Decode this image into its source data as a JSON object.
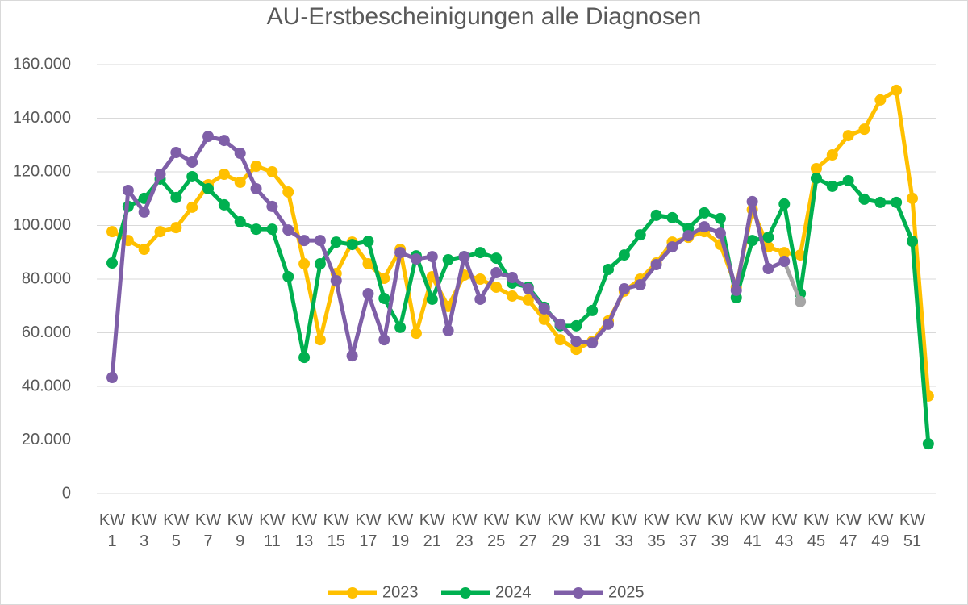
{
  "chart_data": {
    "type": "line",
    "title": "AU-Erstbescheinigungen alle Diagnosen",
    "categories": [
      "KW 1",
      null,
      "KW 3",
      null,
      "KW 5",
      null,
      "KW 7",
      null,
      "KW 9",
      null,
      "KW 11",
      null,
      "KW 13",
      null,
      "KW 15",
      null,
      "KW 17",
      null,
      "KW 19",
      null,
      "KW 21",
      null,
      "KW 23",
      null,
      "KW 25",
      null,
      "KW 27",
      null,
      "KW 29",
      null,
      "KW 31",
      null,
      "KW 33",
      null,
      "KW 35",
      null,
      "KW 37",
      null,
      "KW 39",
      null,
      "KW 41",
      null,
      "KW 43",
      null,
      "KW 45",
      null,
      "KW 47",
      null,
      "KW 49",
      null,
      "KW 51",
      null
    ],
    "ylim": [
      0,
      160000
    ],
    "yticks": [
      {
        "value": 0,
        "label": "0"
      },
      {
        "value": 20000,
        "label": "20.000"
      },
      {
        "value": 40000,
        "label": "40.000"
      },
      {
        "value": 60000,
        "label": "60.000"
      },
      {
        "value": 80000,
        "label": "80.000"
      },
      {
        "value": 100000,
        "label": "100.000"
      },
      {
        "value": 120000,
        "label": "120.000"
      },
      {
        "value": 140000,
        "label": "140.000"
      },
      {
        "value": 160000,
        "label": "160.000"
      }
    ],
    "grid": true,
    "legend": "bottom",
    "series": [
      {
        "name": "2023",
        "color": "#ffc000",
        "values": [
          97700,
          94400,
          91100,
          97700,
          99200,
          106800,
          115200,
          119100,
          116100,
          122100,
          120000,
          112500,
          85700,
          57400,
          82100,
          93800,
          85700,
          80300,
          91100,
          59800,
          80900,
          69800,
          81500,
          80000,
          77000,
          73700,
          72200,
          65000,
          57400,
          53800,
          56800,
          64400,
          75500,
          80000,
          86000,
          93800,
          95600,
          97700,
          92900,
          77000,
          105900,
          92000,
          89900,
          89000,
          121200,
          126300,
          133500,
          135900,
          146800,
          150400,
          110100,
          36400
        ]
      },
      {
        "name": "2024",
        "color": "#00b050",
        "values": [
          86000,
          107100,
          110100,
          117300,
          110400,
          118200,
          113700,
          107700,
          101400,
          98600,
          98600,
          80900,
          50800,
          85700,
          93800,
          92900,
          94100,
          72800,
          62000,
          88700,
          72500,
          87200,
          88400,
          89900,
          87800,
          78500,
          77000,
          69500,
          62600,
          62600,
          68300,
          83600,
          89000,
          96500,
          103800,
          102900,
          98900,
          104700,
          102600,
          73100,
          94400,
          95600,
          108000,
          74600,
          117600,
          114600,
          116700,
          109800,
          108600,
          108600,
          94100,
          18600
        ]
      },
      {
        "name": "2025",
        "color": "#7f5fa8",
        "tail_color": "#a5a5a5",
        "values": [
          43300,
          113100,
          105000,
          119100,
          127200,
          123600,
          133200,
          131700,
          126900,
          113700,
          107100,
          98300,
          94400,
          94400,
          79400,
          51400,
          74600,
          57400,
          89900,
          87500,
          88400,
          60800,
          88400,
          72500,
          82400,
          80600,
          76400,
          68900,
          63200,
          56800,
          56200,
          63200,
          76400,
          77900,
          85400,
          92000,
          96200,
          99500,
          97100,
          75800,
          108900,
          83900,
          86600,
          71600,
          null,
          null,
          null,
          null,
          null,
          null,
          null,
          null
        ]
      }
    ]
  }
}
